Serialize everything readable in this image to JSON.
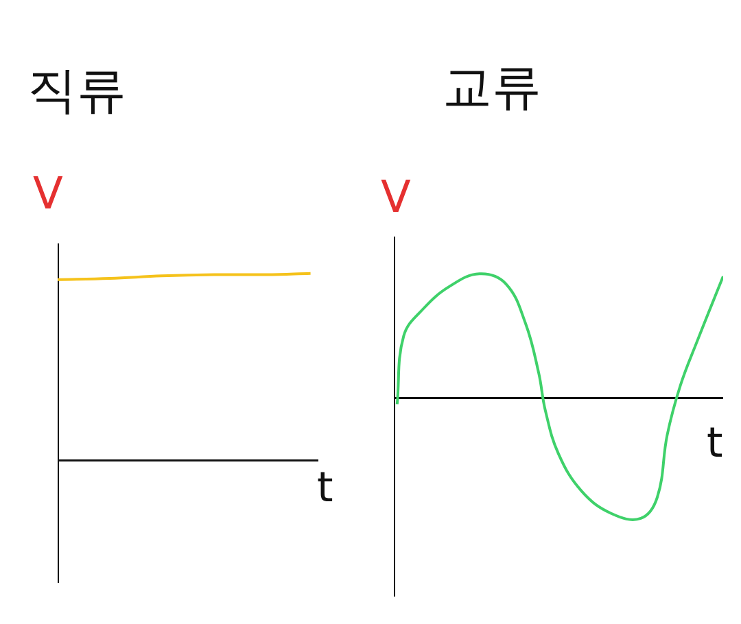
{
  "chart_data": [
    {
      "type": "line",
      "title": "직류",
      "x_label": "t",
      "y_label": "V",
      "x": [
        0,
        2,
        4,
        6,
        8,
        9.7
      ],
      "values": [
        1.45,
        1.46,
        1.48,
        1.49,
        1.49,
        1.5
      ],
      "color": "#f5c21b",
      "xlim": [
        0,
        10
      ],
      "ylim": [
        -0.98,
        1.74
      ],
      "grid": false,
      "tick_labels": false
    },
    {
      "type": "line",
      "title": "교류",
      "x_label": "t",
      "y_label": "V",
      "x": [
        0.1,
        0.3,
        0.9,
        1.7,
        2.6,
        3.4,
        4.0,
        4.4,
        4.6,
        5.0,
        5.7,
        6.6,
        7.5,
        8.0,
        8.3,
        8.7,
        9.2,
        10.0
      ],
      "values": [
        -0.05,
        0.5,
        0.72,
        0.9,
        1.0,
        0.92,
        0.6,
        0.2,
        -0.1,
        -0.45,
        -0.75,
        -0.93,
        -0.97,
        -0.8,
        -0.3,
        0.1,
        0.45,
        0.98
      ],
      "color": "#3fd16a",
      "xlim": [
        0,
        10
      ],
      "ylim": [
        -1.6,
        1.3
      ],
      "grid": false,
      "tick_labels": false
    }
  ]
}
